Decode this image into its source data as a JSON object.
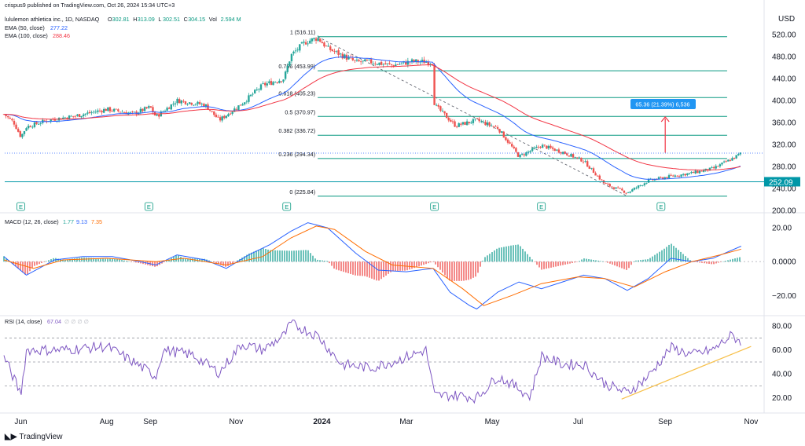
{
  "header": {
    "publisher": "crispus9 published on TradingView.com, Oct 26, 2024 15:34 UTC+3",
    "symbol": "lululemon athletica inc., 1D, NASDAQ",
    "ohlc": [
      {
        "k": "O",
        "v": "302.81"
      },
      {
        "k": "H",
        "v": "313.09"
      },
      {
        "k": "L",
        "v": "302.51"
      },
      {
        "k": "C",
        "v": "304.15"
      },
      {
        "k": "Vol",
        "v": "2.594 M"
      }
    ],
    "ema50": {
      "label": "EMA (50, close)",
      "value": "277.22"
    },
    "ema100": {
      "label": "EMA (100, close)",
      "value": "288.46"
    },
    "currency": "USD"
  },
  "colors": {
    "up": "#26a69a",
    "down": "#ef5350",
    "ema50": "#2962ff",
    "ema100": "#f23645",
    "fib": "#089981",
    "macd_line": "#2962ff",
    "signal_line": "#ff6d00",
    "rsi": "#7e57c2",
    "trend": "#f7c04a",
    "arrow": "#f23645",
    "label_bg": "#2196f3",
    "support": "#0097a7"
  },
  "footer": {
    "brand": "TradingView",
    "brand_icon": "tradingview-logo-icon"
  },
  "chart_data": [
    {
      "type": "candlestick",
      "title": "lululemon athletica inc., 1D, NASDAQ",
      "ylabel": "USD",
      "ylim": [
        197,
        540
      ],
      "y_ticks": [
        "520.00",
        "480.00",
        "440.00",
        "400.00",
        "360.00",
        "320.00",
        "280.00",
        "240.00",
        "200.00"
      ],
      "x_ticks": [
        "Jun",
        "Aug",
        "Sep",
        "Nov",
        "2024",
        "Mar",
        "May",
        "Jul",
        "Sep",
        "Nov"
      ],
      "close_path": [
        {
          "date": "2023-05-20",
          "close": 375
        },
        {
          "date": "2023-05-27",
          "close": 360
        },
        {
          "date": "2023-06-01",
          "close": 334
        },
        {
          "date": "2023-06-05",
          "close": 352
        },
        {
          "date": "2023-06-20",
          "close": 364
        },
        {
          "date": "2023-07-10",
          "close": 372
        },
        {
          "date": "2023-08-01",
          "close": 384
        },
        {
          "date": "2023-08-20",
          "close": 376
        },
        {
          "date": "2023-09-01",
          "close": 388
        },
        {
          "date": "2023-09-05",
          "close": 370
        },
        {
          "date": "2023-09-20",
          "close": 400
        },
        {
          "date": "2023-10-10",
          "close": 392
        },
        {
          "date": "2023-10-20",
          "close": 364
        },
        {
          "date": "2023-11-05",
          "close": 394
        },
        {
          "date": "2023-11-20",
          "close": 428
        },
        {
          "date": "2023-12-05",
          "close": 440
        },
        {
          "date": "2023-12-10",
          "close": 482
        },
        {
          "date": "2023-12-20",
          "close": 506
        },
        {
          "date": "2023-12-29",
          "close": 514
        },
        {
          "date": "2024-01-05",
          "close": 495
        },
        {
          "date": "2024-01-25",
          "close": 470
        },
        {
          "date": "2024-02-05",
          "close": 470
        },
        {
          "date": "2024-02-20",
          "close": 464
        },
        {
          "date": "2024-03-05",
          "close": 471
        },
        {
          "date": "2024-03-20",
          "close": 470
        },
        {
          "date": "2024-03-21",
          "close": 392
        },
        {
          "date": "2024-04-05",
          "close": 354
        },
        {
          "date": "2024-04-20",
          "close": 364
        },
        {
          "date": "2024-05-05",
          "close": 350
        },
        {
          "date": "2024-05-20",
          "close": 298
        },
        {
          "date": "2024-06-05",
          "close": 318
        },
        {
          "date": "2024-06-20",
          "close": 306
        },
        {
          "date": "2024-07-05",
          "close": 290
        },
        {
          "date": "2024-07-20",
          "close": 248
        },
        {
          "date": "2024-08-05",
          "close": 232
        },
        {
          "date": "2024-08-20",
          "close": 254
        },
        {
          "date": "2024-09-05",
          "close": 262
        },
        {
          "date": "2024-09-20",
          "close": 268
        },
        {
          "date": "2024-10-05",
          "close": 276
        },
        {
          "date": "2024-10-20",
          "close": 296
        },
        {
          "date": "2024-10-25",
          "close": 304.15
        }
      ],
      "series": [
        {
          "name": "EMA (50, close)",
          "last": 277.22
        },
        {
          "name": "EMA (100, close)",
          "last": 288.46
        }
      ],
      "fibonacci": [
        {
          "label": "1 (516.11)",
          "level": 516.11
        },
        {
          "label": "0.786 (453.99)",
          "level": 453.99
        },
        {
          "label": "0.618 (405.23)",
          "level": 405.23
        },
        {
          "label": "0.5 (370.97)",
          "level": 370.97
        },
        {
          "label": "0.382 (336.72)",
          "level": 336.72
        },
        {
          "label": "0.236 (294.34)",
          "level": 294.34
        },
        {
          "label": "0 (225.84)",
          "level": 225.84
        }
      ],
      "support": {
        "level": 252.09,
        "label": "252.09"
      },
      "measure": {
        "label": "65.36 (21.39%) 6,536",
        "from": 305,
        "to": 370
      },
      "earnings_marker": "E",
      "earnings_dates": [
        "2023-06-01",
        "2023-08-31",
        "2023-12-07",
        "2024-03-21",
        "2024-06-05",
        "2024-08-29"
      ]
    },
    {
      "type": "line",
      "title": "MACD (12, 26, close)",
      "values_label": [
        "1.77",
        "9.13",
        "7.35"
      ],
      "ylim": [
        -31,
        27
      ],
      "y_ticks": [
        "20.00",
        "0.0000",
        "−20.00"
      ],
      "series": [
        {
          "name": "MACD",
          "points": [
            {
              "date": "2023-05-20",
              "y": 3
            },
            {
              "date": "2023-06-05",
              "y": -8
            },
            {
              "date": "2023-06-25",
              "y": 1
            },
            {
              "date": "2023-07-15",
              "y": 3
            },
            {
              "date": "2023-08-05",
              "y": 3
            },
            {
              "date": "2023-08-25",
              "y": 0
            },
            {
              "date": "2023-09-05",
              "y": -2
            },
            {
              "date": "2023-09-20",
              "y": 4
            },
            {
              "date": "2023-10-10",
              "y": 1
            },
            {
              "date": "2023-10-25",
              "y": -4
            },
            {
              "date": "2023-11-10",
              "y": 4
            },
            {
              "date": "2023-11-25",
              "y": 10
            },
            {
              "date": "2023-12-10",
              "y": 18
            },
            {
              "date": "2023-12-22",
              "y": 23
            },
            {
              "date": "2024-01-05",
              "y": 20
            },
            {
              "date": "2024-01-25",
              "y": 5
            },
            {
              "date": "2024-02-10",
              "y": -5
            },
            {
              "date": "2024-03-01",
              "y": -6
            },
            {
              "date": "2024-03-20",
              "y": -4
            },
            {
              "date": "2024-04-01",
              "y": -18
            },
            {
              "date": "2024-04-15",
              "y": -26
            },
            {
              "date": "2024-04-20",
              "y": -28
            },
            {
              "date": "2024-05-05",
              "y": -18
            },
            {
              "date": "2024-05-20",
              "y": -12
            },
            {
              "date": "2024-06-05",
              "y": -16
            },
            {
              "date": "2024-06-20",
              "y": -12
            },
            {
              "date": "2024-07-05",
              "y": -8
            },
            {
              "date": "2024-07-20",
              "y": -10
            },
            {
              "date": "2024-08-05",
              "y": -17
            },
            {
              "date": "2024-08-20",
              "y": -10
            },
            {
              "date": "2024-09-05",
              "y": 2
            },
            {
              "date": "2024-09-20",
              "y": 0
            },
            {
              "date": "2024-10-05",
              "y": 2
            },
            {
              "date": "2024-10-25",
              "y": 9.13
            }
          ]
        },
        {
          "name": "Signal",
          "points": [
            {
              "date": "2023-05-20",
              "y": 1
            },
            {
              "date": "2023-06-10",
              "y": -4
            },
            {
              "date": "2023-07-01",
              "y": 1
            },
            {
              "date": "2023-08-01",
              "y": 2
            },
            {
              "date": "2023-09-05",
              "y": 0
            },
            {
              "date": "2023-09-25",
              "y": 2
            },
            {
              "date": "2023-10-25",
              "y": -2
            },
            {
              "date": "2023-11-20",
              "y": 3
            },
            {
              "date": "2023-12-10",
              "y": 14
            },
            {
              "date": "2023-12-28",
              "y": 21
            },
            {
              "date": "2024-01-10",
              "y": 19
            },
            {
              "date": "2024-02-01",
              "y": 6
            },
            {
              "date": "2024-02-20",
              "y": -2
            },
            {
              "date": "2024-03-20",
              "y": -4
            },
            {
              "date": "2024-04-10",
              "y": -16
            },
            {
              "date": "2024-04-25",
              "y": -26
            },
            {
              "date": "2024-05-15",
              "y": -20
            },
            {
              "date": "2024-06-05",
              "y": -13
            },
            {
              "date": "2024-07-01",
              "y": -9
            },
            {
              "date": "2024-07-20",
              "y": -10
            },
            {
              "date": "2024-08-10",
              "y": -15
            },
            {
              "date": "2024-09-01",
              "y": -6
            },
            {
              "date": "2024-09-20",
              "y": 0
            },
            {
              "date": "2024-10-10",
              "y": 4
            },
            {
              "date": "2024-10-25",
              "y": 7.35
            }
          ]
        }
      ],
      "histogram_last": 1.77
    },
    {
      "type": "line",
      "title": "RSI (14, close)",
      "values_label": [
        "67.04"
      ],
      "ylim": [
        10,
        88
      ],
      "y_ticks": [
        "80.00",
        "60.00",
        "40.00",
        "20.00"
      ],
      "bands": [
        70,
        50,
        30
      ],
      "series": [
        {
          "name": "RSI",
          "points": [
            {
              "date": "2023-05-20",
              "y": 55
            },
            {
              "date": "2023-06-01",
              "y": 23
            },
            {
              "date": "2023-06-05",
              "y": 60
            },
            {
              "date": "2023-07-01",
              "y": 60
            },
            {
              "date": "2023-08-01",
              "y": 63
            },
            {
              "date": "2023-08-20",
              "y": 50
            },
            {
              "date": "2023-09-05",
              "y": 38
            },
            {
              "date": "2023-09-10",
              "y": 60
            },
            {
              "date": "2023-10-01",
              "y": 56
            },
            {
              "date": "2023-10-20",
              "y": 41
            },
            {
              "date": "2023-11-05",
              "y": 65
            },
            {
              "date": "2023-11-20",
              "y": 60
            },
            {
              "date": "2023-12-05",
              "y": 72
            },
            {
              "date": "2023-12-10",
              "y": 82
            },
            {
              "date": "2023-12-29",
              "y": 72
            },
            {
              "date": "2024-01-15",
              "y": 48
            },
            {
              "date": "2024-02-05",
              "y": 45
            },
            {
              "date": "2024-02-25",
              "y": 52
            },
            {
              "date": "2024-03-15",
              "y": 60
            },
            {
              "date": "2024-03-21",
              "y": 22
            },
            {
              "date": "2024-04-10",
              "y": 22
            },
            {
              "date": "2024-04-20",
              "y": 20
            },
            {
              "date": "2024-05-05",
              "y": 38
            },
            {
              "date": "2024-05-20",
              "y": 28
            },
            {
              "date": "2024-05-28",
              "y": 21
            },
            {
              "date": "2024-06-05",
              "y": 55
            },
            {
              "date": "2024-06-20",
              "y": 48
            },
            {
              "date": "2024-07-05",
              "y": 48
            },
            {
              "date": "2024-07-20",
              "y": 32
            },
            {
              "date": "2024-08-05",
              "y": 24
            },
            {
              "date": "2024-08-20",
              "y": 38
            },
            {
              "date": "2024-09-05",
              "y": 62
            },
            {
              "date": "2024-09-20",
              "y": 56
            },
            {
              "date": "2024-10-05",
              "y": 60
            },
            {
              "date": "2024-10-18",
              "y": 72
            },
            {
              "date": "2024-10-25",
              "y": 67.04
            }
          ]
        }
      ],
      "trendline": [
        {
          "date": "2024-08-01",
          "y": 19
        },
        {
          "date": "2024-11-01",
          "y": 63
        }
      ]
    }
  ]
}
